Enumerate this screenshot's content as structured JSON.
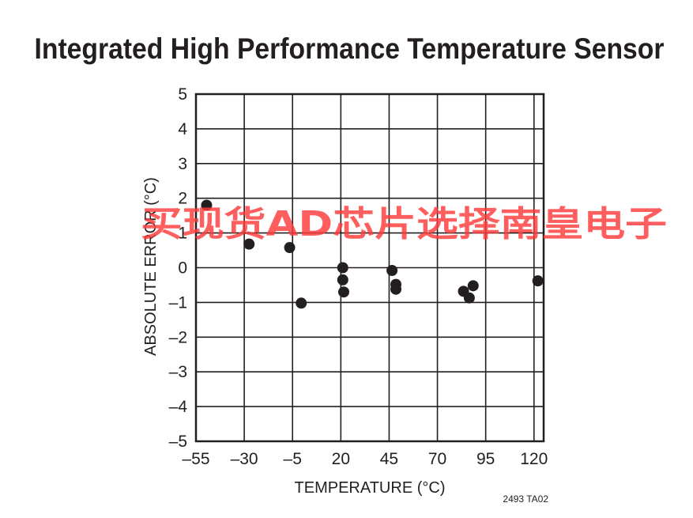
{
  "chart_data": {
    "type": "scatter",
    "title": "Integrated High Performance Temperature Sensor",
    "xlabel": "TEMPERATURE (°C)",
    "ylabel": "ABSOLUTE ERROR (°C)",
    "xlim": [
      -55,
      125
    ],
    "ylim": [
      -5,
      5
    ],
    "xticks": [
      -55,
      -30,
      -5,
      20,
      45,
      70,
      95,
      120
    ],
    "xtick_labels": [
      "–55",
      "–30",
      "–5",
      "20",
      "45",
      "70",
      "95",
      "120"
    ],
    "yticks": [
      5,
      4,
      3,
      2,
      1,
      0,
      -1,
      -2,
      -3,
      -4,
      -5
    ],
    "ytick_labels": [
      "5",
      "4",
      "3",
      "2",
      "1",
      "0",
      "–1",
      "–2",
      "–3",
      "–4",
      "–5"
    ],
    "grid": true,
    "points": [
      {
        "x": -49.5,
        "y": 1.8
      },
      {
        "x": -27.5,
        "y": 0.68
      },
      {
        "x": -6.5,
        "y": 0.58
      },
      {
        "x": -0.5,
        "y": -1.02
      },
      {
        "x": 21,
        "y": 0.0
      },
      {
        "x": 21,
        "y": -0.35
      },
      {
        "x": 21.5,
        "y": -0.7
      },
      {
        "x": 46.5,
        "y": -0.08
      },
      {
        "x": 48.5,
        "y": -0.48
      },
      {
        "x": 48.5,
        "y": -0.62
      },
      {
        "x": 83.5,
        "y": -0.68
      },
      {
        "x": 86.5,
        "y": -0.87
      },
      {
        "x": 88.5,
        "y": -0.52
      },
      {
        "x": 122,
        "y": -0.38
      }
    ],
    "point_color": "#231f20",
    "figure_id": "2493 TA02"
  },
  "watermark": {
    "text": "买现货AD芯片选择南皇电子",
    "color": "#ff3b3b"
  }
}
